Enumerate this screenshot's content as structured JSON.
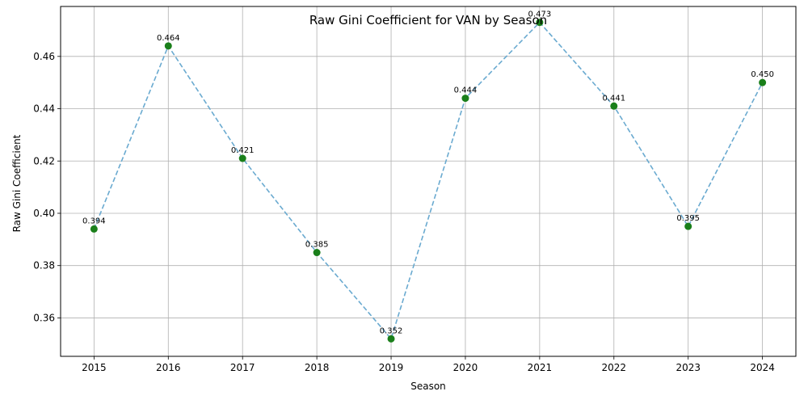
{
  "chart_data": {
    "type": "line",
    "title": "Raw Gini Coefficient for VAN by Season",
    "xlabel": "Season",
    "ylabel": "Raw Gini Coefficient",
    "x": [
      2015,
      2016,
      2017,
      2018,
      2019,
      2020,
      2021,
      2022,
      2023,
      2024
    ],
    "series": [
      {
        "values": [
          0.394,
          0.464,
          0.421,
          0.385,
          0.352,
          0.444,
          0.473,
          0.441,
          0.395,
          0.45
        ],
        "labels": [
          "0.394",
          "0.464",
          "0.421",
          "0.385",
          "0.352",
          "0.444",
          "0.473",
          "0.441",
          "0.395",
          "0.450"
        ],
        "line_color": "#6aaad0",
        "line_style": "dashed",
        "marker_color": "#1a7f1a"
      }
    ],
    "xlim": [
      2014.55,
      2024.45
    ],
    "ylim": [
      0.3453,
      0.4791
    ],
    "y_ticks": [
      0.36,
      0.38,
      0.4,
      0.42,
      0.44,
      0.46
    ],
    "y_tick_labels": [
      "0.36",
      "0.38",
      "0.40",
      "0.42",
      "0.44",
      "0.46"
    ],
    "x_tick_labels": [
      "2015",
      "2016",
      "2017",
      "2018",
      "2019",
      "2020",
      "2021",
      "2022",
      "2023",
      "2024"
    ],
    "grid": true,
    "legend": "none"
  }
}
